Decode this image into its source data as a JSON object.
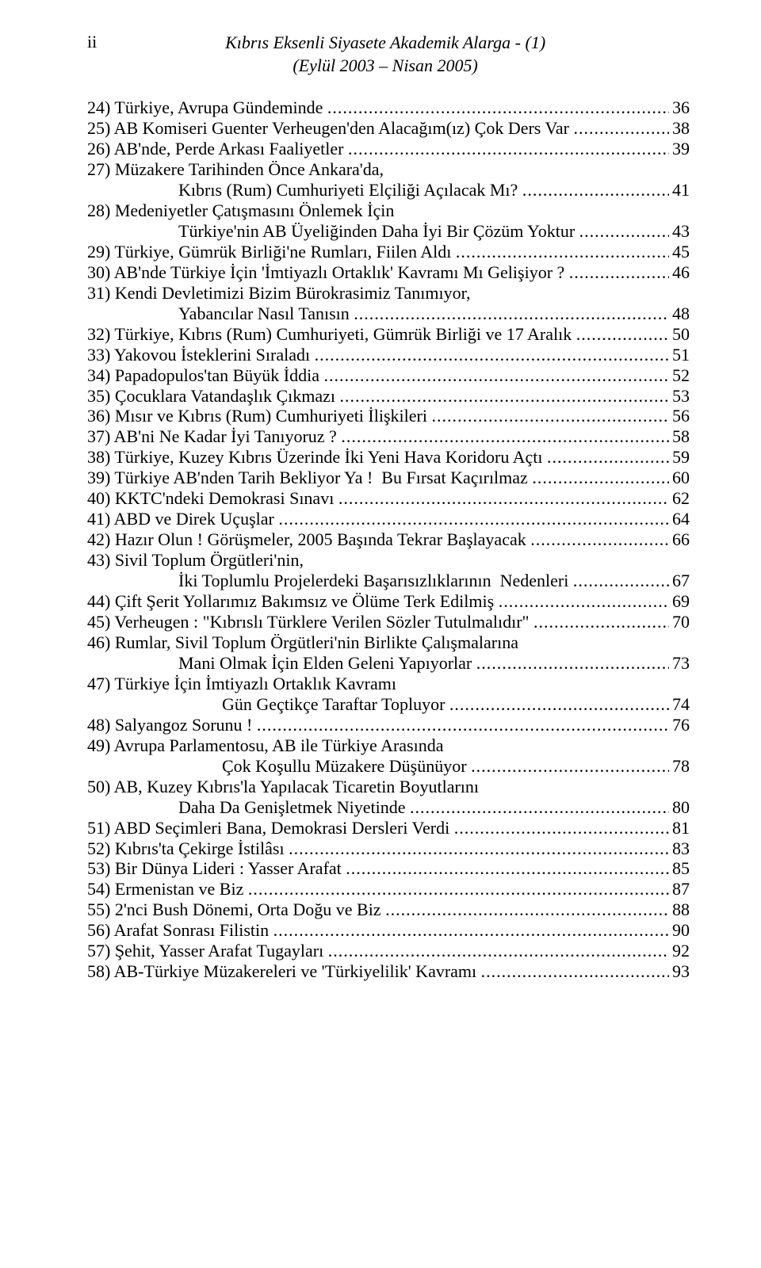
{
  "header": {
    "page_number": "ii",
    "title_line1": "Kıbrıs Eksenli Siyasete Akademik Alarga - (1)",
    "title_line2": "(Eylül 2003 – Nisan 2005)"
  },
  "entries": [
    {
      "text": "24) Türkiye, Avrupa Gündeminde ",
      "page": "36"
    },
    {
      "text": "25) AB Komiseri Guenter Verheugen'den Alacağım(ız) Çok Ders Var ",
      "page": " 38"
    },
    {
      "text": "26) AB'nde, Perde Arkası Faaliyetler ",
      "page": " 39"
    },
    {
      "text": "27) Müzakere Tarihinden Önce Ankara'da,",
      "nopage": true
    },
    {
      "text": "Kıbrıs (Rum) Cumhuriyeti Elçiliği Açılacak Mı? ",
      "page": "  41",
      "indent": true
    },
    {
      "text": "28) Medeniyetler Çatışmasını Önlemek İçin",
      "nopage": true
    },
    {
      "text": "Türkiye'nin AB Üyeliğinden Daha İyi Bir Çözüm Yoktur ",
      "page": "  43",
      "indent": true
    },
    {
      "text": "29) Türkiye, Gümrük Birliği'ne Rumları, Fiilen Aldı ",
      "page": " 45"
    },
    {
      "text": "30) AB'nde Türkiye İçin 'İmtiyazlı Ortaklık' Kavramı Mı Gelişiyor ? ",
      "page": " 46"
    },
    {
      "text": "31) Kendi Devletimizi Bizim Bürokrasimiz Tanımıyor,",
      "nopage": true
    },
    {
      "text": "Yabancılar Nasıl Tanısın ",
      "page": "  48",
      "indent": true
    },
    {
      "text": "32) Türkiye, Kıbrıs (Rum) Cumhuriyeti, Gümrük Birliği ve 17 Aralık ",
      "page": " 50"
    },
    {
      "text": "33) Yakovou İsteklerini Sıraladı ",
      "page": " 51"
    },
    {
      "text": "34) Papadopulos'tan Büyük İddia ",
      "page": " 52"
    },
    {
      "text": "35) Çocuklara Vatandaşlık Çıkmazı ",
      "page": "   53"
    },
    {
      "text": "36) Mısır ve Kıbrıs (Rum) Cumhuriyeti İlişkileri ",
      "page": "56"
    },
    {
      "text": "37) AB'ni Ne Kadar İyi Tanıyoruz ? ",
      "page": " 58"
    },
    {
      "text": "38) Türkiye, Kuzey Kıbrıs Üzerinde İki Yeni Hava Koridoru Açtı ",
      "page": " 59"
    },
    {
      "text": "39) Türkiye AB'nden Tarih Bekliyor Ya !  Bu Fırsat Kaçırılmaz ",
      "page": " 60"
    },
    {
      "text": "40) KKTC'ndeki Demokrasi Sınavı ",
      "page": " 62"
    },
    {
      "text": "41) ABD ve Direk Uçuşlar ",
      "page": " 64"
    },
    {
      "text": "42) Hazır Olun ! Görüşmeler, 2005 Başında Tekrar Başlayacak ",
      "page": " 66"
    },
    {
      "text": "43) Sivil Toplum Örgütleri'nin,",
      "nopage": true
    },
    {
      "text": "İki Toplumlu Projelerdeki Başarısızlıklarının  Nedenleri ",
      "page": "  67",
      "indent": true
    },
    {
      "text": "44) Çift Şerit Yollarımız Bakımsız ve Ölüme Terk Edilmiş ",
      "page": " 69"
    },
    {
      "text": "45) Verheugen : \"Kıbrıslı Türklere Verilen Sözler Tutulmalıdır\" ",
      "page": " 70"
    },
    {
      "text": "46) Rumlar, Sivil Toplum Örgütleri'nin Birlikte Çalışmalarına",
      "nopage": true
    },
    {
      "text": "Mani Olmak İçin Elden Geleni Yapıyorlar ",
      "page": "   73",
      "indent": true
    },
    {
      "text": "47) Türkiye İçin İmtiyazlı Ortaklık Kavramı",
      "nopage": true
    },
    {
      "text": "Gün Geçtikçe Taraftar Topluyor ",
      "page": "  74",
      "indent2": true
    },
    {
      "text": "48) Salyangoz Sorunu ! ",
      "page": " 76"
    },
    {
      "text": "49) Avrupa Parlamentosu, AB ile Türkiye Arasında",
      "nopage": true
    },
    {
      "text": "Çok Koşullu Müzakere Düşünüyor ",
      "page": "   78",
      "indent2": true
    },
    {
      "text": "50) AB, Kuzey Kıbrıs'la Yapılacak Ticaretin Boyutlarını",
      "nopage": true
    },
    {
      "text": "Daha Da Genişletmek Niyetinde ",
      "page": "  80",
      "indent": true
    },
    {
      "text": "51) ABD Seçimleri Bana, Demokrasi Dersleri Verdi ",
      "page": "  81"
    },
    {
      "text": "52) Kıbrıs'ta Çekirge İstilâsı ",
      "page": "  83"
    },
    {
      "text": "53) Bir Dünya Lideri : Yasser Arafat ",
      "page": " 85"
    },
    {
      "text": "54) Ermenistan ve Biz ",
      "page": "  87"
    },
    {
      "text": "55) 2'nci Bush Dönemi, Orta Doğu ve Biz ",
      "page": " 88"
    },
    {
      "text": "56) Arafat Sonrası Filistin ",
      "page": "  90"
    },
    {
      "text": "57) Şehit, Yasser Arafat Tugayları ",
      "page": " 92"
    },
    {
      "text": "58) AB-Türkiye Müzakereleri ve 'Türkiyelilik' Kavramı ",
      "page": "  93"
    }
  ]
}
